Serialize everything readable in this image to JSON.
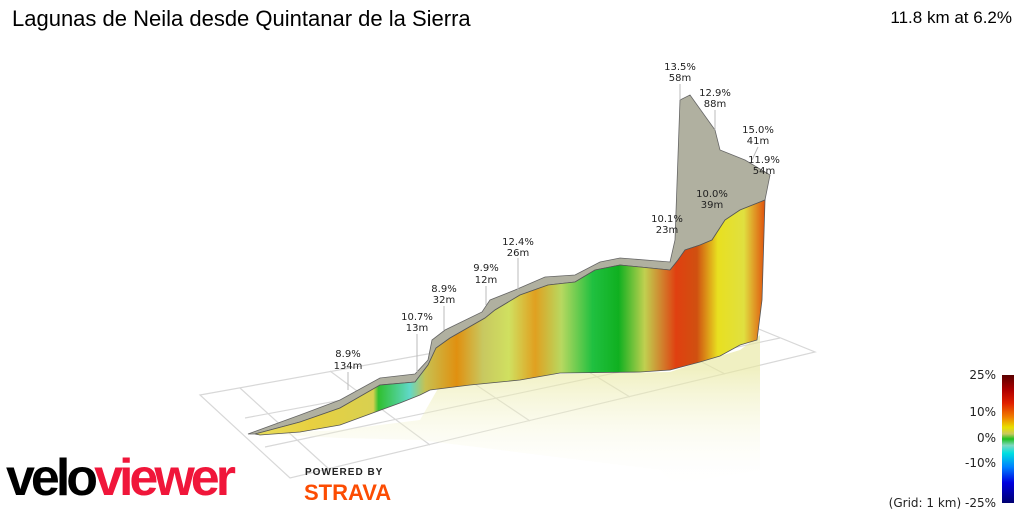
{
  "header": {
    "title": "Lagunas de Neila desde Quintanar de la Sierra",
    "summary": "11.8 km at 6.2%"
  },
  "chart_data": {
    "type": "3d-elevation-profile",
    "title": "Lagunas de Neila desde Quintanar de la Sierra",
    "distance_km": 11.8,
    "average_grade_pct": 6.2,
    "grid": "on",
    "grid_note": "(Grid: 1 km)",
    "annotations": [
      {
        "grade": "8.9%",
        "length": "134m"
      },
      {
        "grade": "10.7%",
        "length": "13m"
      },
      {
        "grade": "8.9%",
        "length": "32m"
      },
      {
        "grade": "9.9%",
        "length": "12m"
      },
      {
        "grade": "12.4%",
        "length": "26m"
      },
      {
        "grade": "10.1%",
        "length": "23m"
      },
      {
        "grade": "13.5%",
        "length": "58m"
      },
      {
        "grade": "12.9%",
        "length": "88m"
      },
      {
        "grade": "15.0%",
        "length": "41m"
      },
      {
        "grade": "11.9%",
        "length": "54m"
      },
      {
        "grade": "10.0%",
        "length": "39m"
      }
    ],
    "legend": {
      "placement": "bottom-right",
      "ticks": [
        "25%",
        "10%",
        "0%",
        "-10%",
        "-25%"
      ],
      "colors": {
        "max": "#5a0000",
        "steep": "#e02000",
        "moderate": "#e8e000",
        "flat": "#20c020",
        "descent": "#00e0e0",
        "min": "#000070"
      }
    }
  },
  "branding": {
    "logo_part1": "velo",
    "logo_part2": "viewer",
    "powered_by": "POWERED BY",
    "strava": "STRAVA",
    "logo_colors": {
      "velo": "#000000",
      "viewer": "#f0163a",
      "strava": "#fc4c02"
    }
  }
}
